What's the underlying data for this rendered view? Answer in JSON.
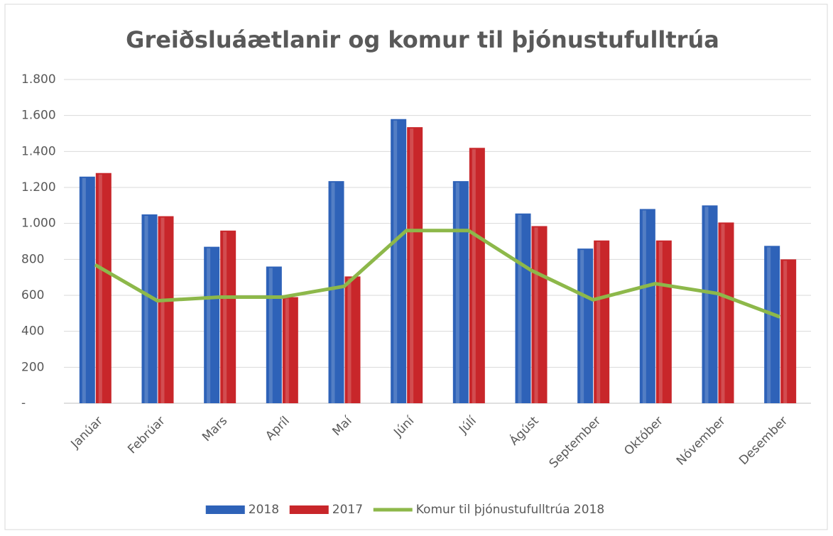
{
  "chart_data": {
    "type": "bar-line",
    "title": "Greiðsluáætlanir og komur til þjónustufulltrúa",
    "categories": [
      "Janúar",
      "Febrúar",
      "Mars",
      "Apríl",
      "Maí",
      "Júní",
      "Júlí",
      "Ágúst",
      "September",
      "Október",
      "Nóvember",
      "Desember"
    ],
    "series": [
      {
        "name": "2018",
        "type": "bar",
        "color": "#2e62b8",
        "values": [
          1260,
          1050,
          870,
          760,
          1235,
          1580,
          1235,
          1055,
          860,
          1080,
          1100,
          875
        ]
      },
      {
        "name": "2017",
        "type": "bar",
        "color": "#c8262a",
        "values": [
          1280,
          1040,
          960,
          590,
          705,
          1535,
          1420,
          985,
          905,
          905,
          1005,
          800
        ]
      },
      {
        "name": "Komur til þjónustufulltrúa 2018",
        "type": "line",
        "color": "#8db84a",
        "values": [
          770,
          570,
          590,
          590,
          650,
          960,
          960,
          740,
          575,
          665,
          610,
          480
        ]
      }
    ],
    "ylim": [
      0,
      1800
    ],
    "yticks": [
      {
        "value": 0,
        "label": "-"
      },
      200,
      400,
      600,
      800,
      {
        "value": 1000,
        "label": "1.000"
      },
      {
        "value": 1200,
        "label": "1.200"
      },
      {
        "value": 1400,
        "label": "1.400"
      },
      {
        "value": 1600,
        "label": "1.600"
      },
      {
        "value": 1800,
        "label": "1.800"
      }
    ],
    "grid": true,
    "legend": "bottom"
  }
}
